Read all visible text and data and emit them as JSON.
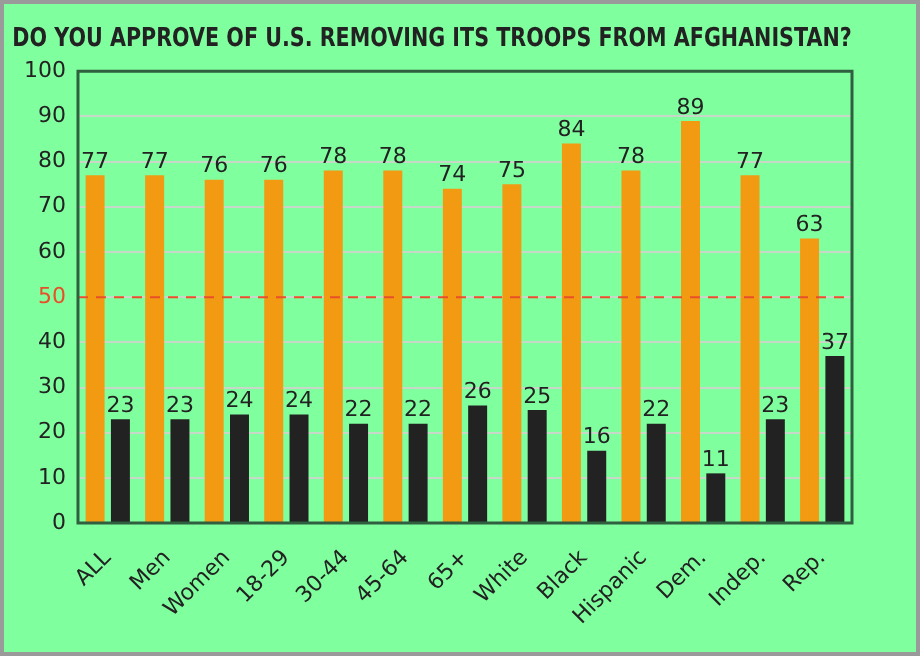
{
  "chart_data": {
    "type": "bar",
    "title": "DO YOU APPROVE OF U.S. REMOVING ITS TROOPS FROM AFGHANISTAN?",
    "categories": [
      "ALL",
      "Men",
      "Women",
      "18-29",
      "30-44",
      "45-64",
      "65+",
      "White",
      "Black",
      "Hispanic",
      "Dem.",
      "Indep.",
      "Rep."
    ],
    "series": [
      {
        "color": "#f29a12",
        "values": [
          77,
          77,
          76,
          76,
          78,
          78,
          74,
          75,
          84,
          78,
          89,
          77,
          63
        ]
      },
      {
        "color": "#222222",
        "values": [
          23,
          23,
          24,
          24,
          22,
          22,
          26,
          25,
          16,
          22,
          11,
          23,
          37
        ]
      }
    ],
    "ylim": [
      0,
      100
    ],
    "yticks": [
      0,
      10,
      20,
      30,
      40,
      50,
      60,
      70,
      80,
      90,
      100
    ],
    "grid": "y",
    "legend": false,
    "data_labels": true,
    "ref_lines": [
      {
        "axis": "y",
        "value": 50,
        "color": "#e8502a",
        "line_style": "dashed"
      }
    ]
  }
}
